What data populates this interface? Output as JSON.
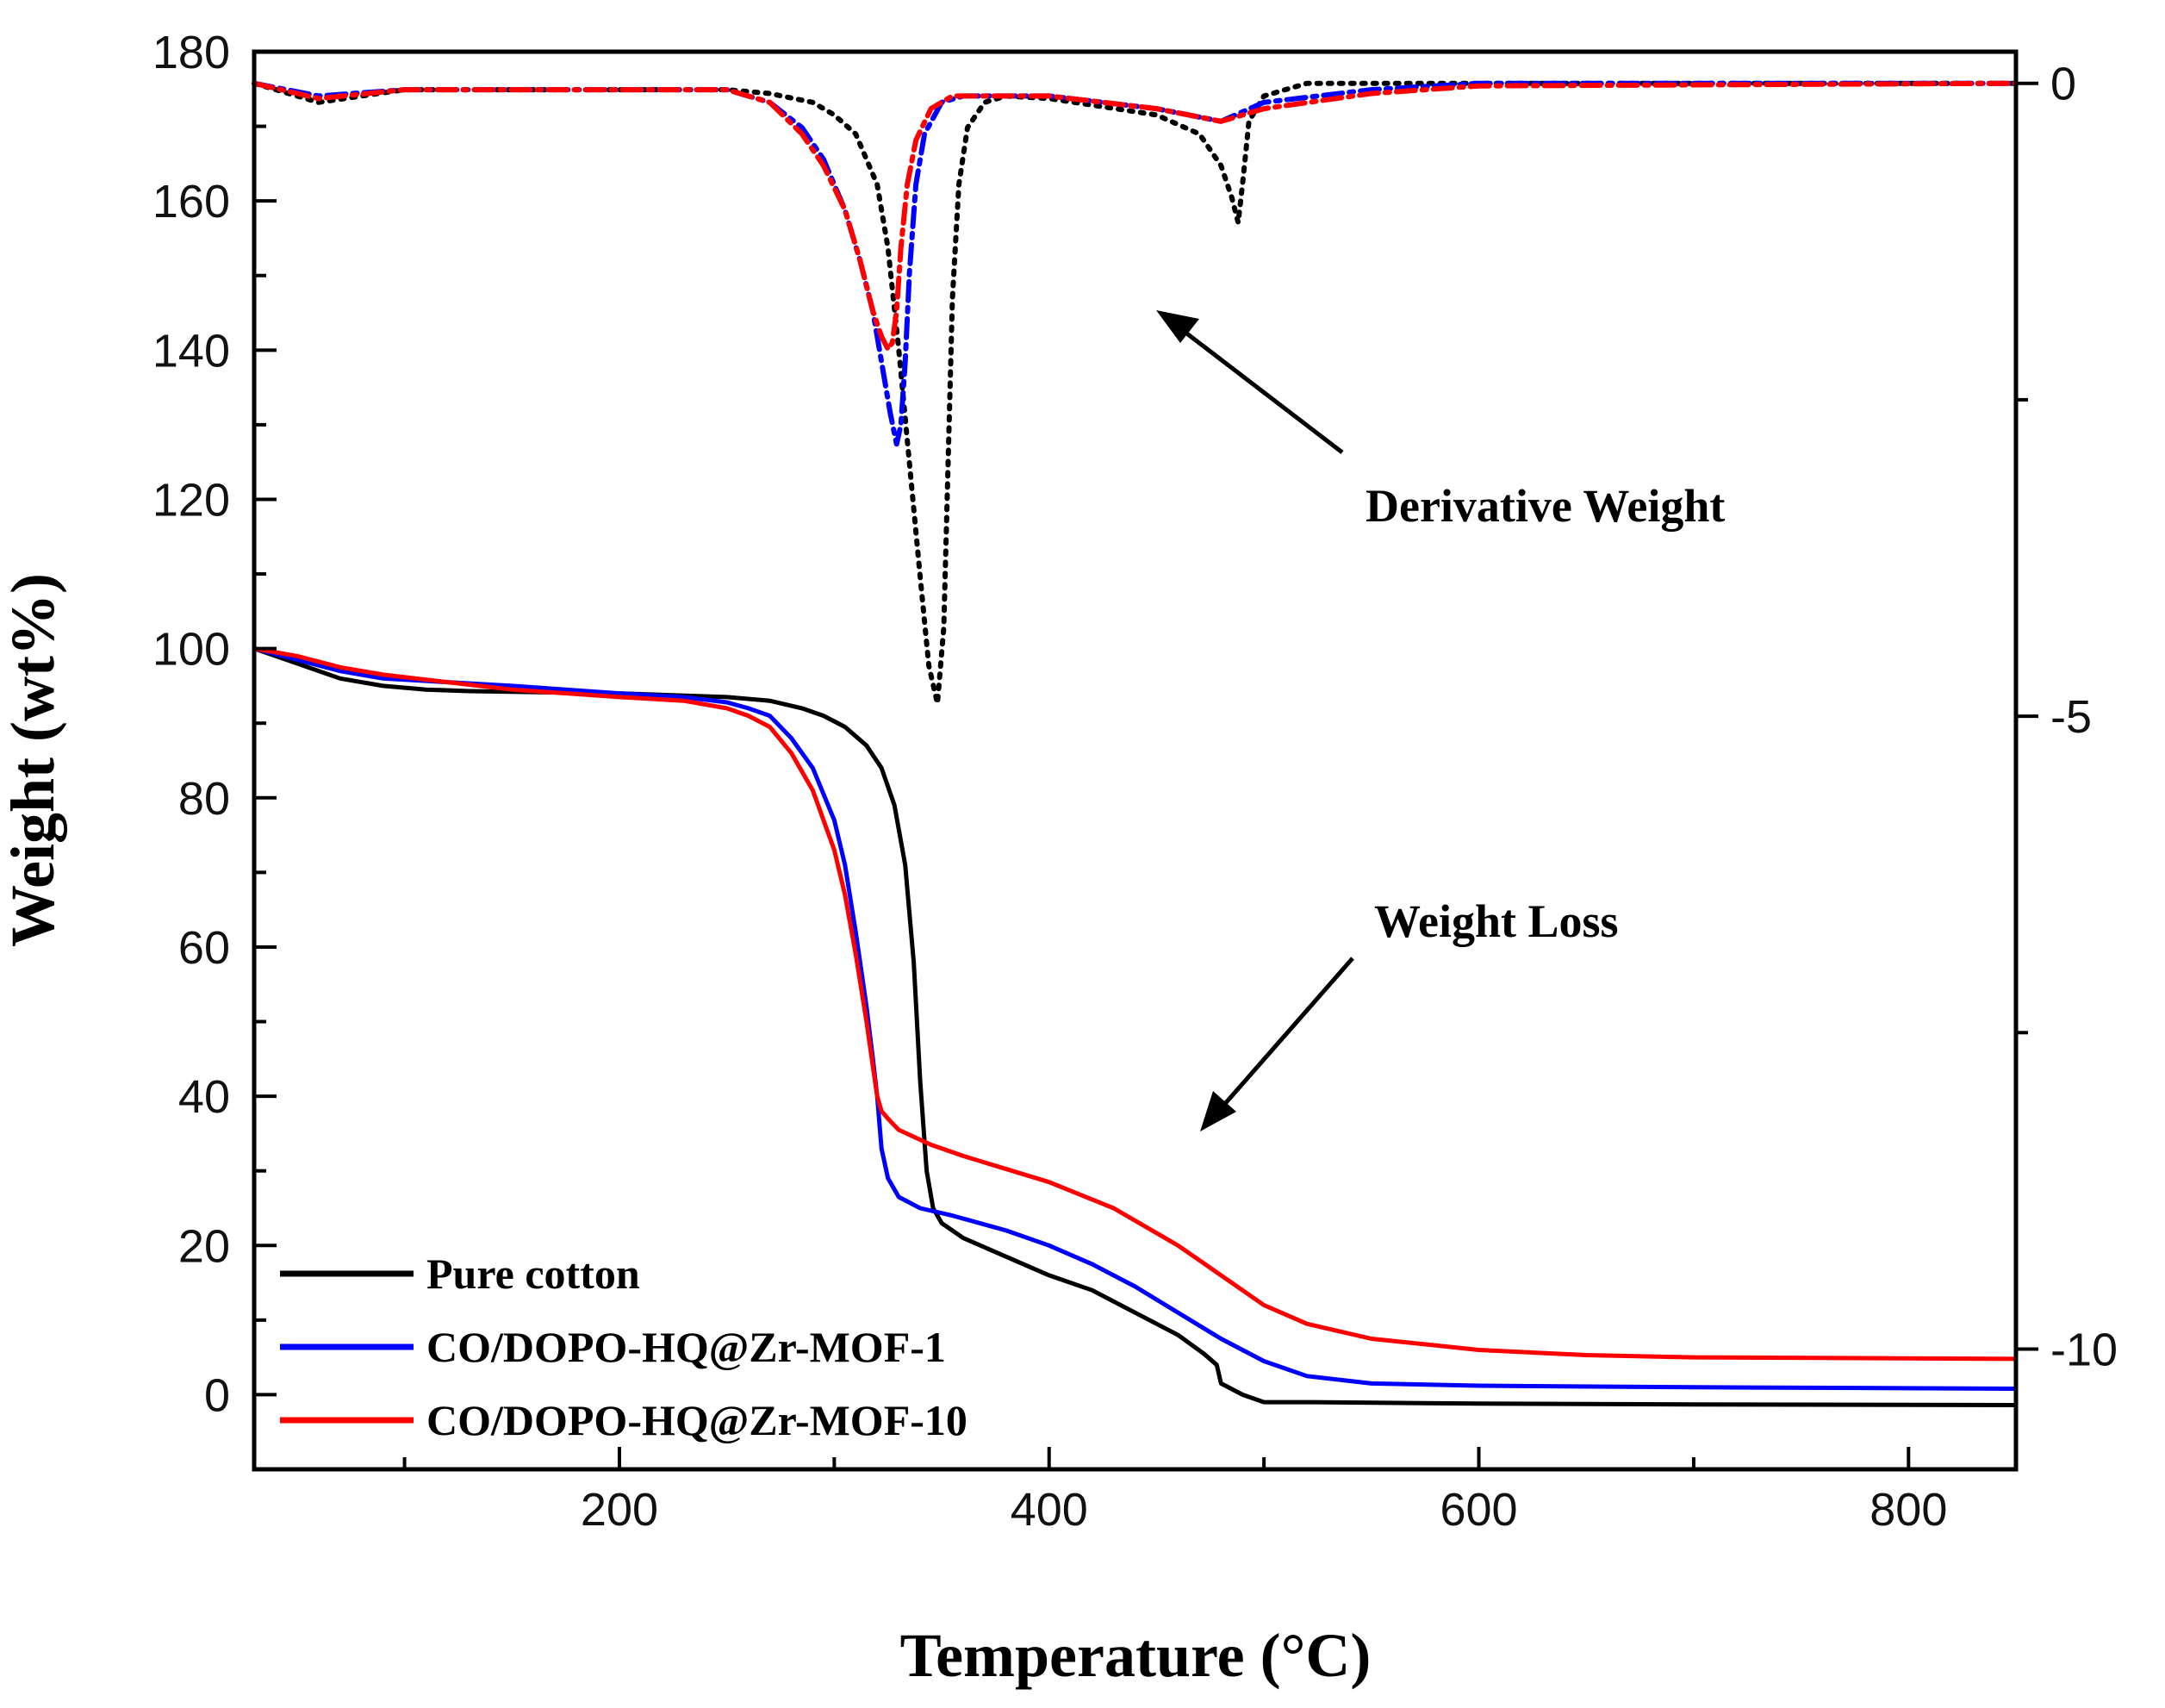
{
  "chart_data": {
    "type": "line",
    "title": "",
    "xlabel": "Temperature (°C)",
    "ylabel": "Weight (wt%)",
    "y2label": "",
    "xlim": [
      30,
      850
    ],
    "ylim": [
      -10,
      180
    ],
    "y2lim": [
      -10.95,
      0.25
    ],
    "x_ticks": [
      200,
      400,
      600,
      800
    ],
    "y_ticks": [
      0,
      20,
      40,
      60,
      80,
      100,
      120,
      140,
      160,
      180
    ],
    "y2_ticks": [
      0,
      -5,
      -10
    ],
    "legend_position": "bottom-left",
    "series": [
      {
        "name": "Pure cotton",
        "color": "#000000",
        "axis": "left",
        "style": "solid",
        "x": [
          30,
          50,
          70,
          90,
          110,
          130,
          150,
          200,
          250,
          270,
          285,
          295,
          305,
          315,
          322,
          328,
          333,
          337,
          340,
          343,
          346,
          350,
          355,
          360,
          380,
          400,
          420,
          440,
          460,
          472,
          478,
          480,
          490,
          500,
          520,
          600,
          700,
          850
        ],
        "values": [
          100,
          98,
          96,
          95,
          94.5,
          94.3,
          94.2,
          94,
          93.5,
          93,
          92,
          91,
          89.5,
          87,
          84,
          79,
          71,
          58,
          42,
          30,
          25,
          23,
          22,
          21,
          18.5,
          16,
          14,
          11,
          8,
          5.5,
          4,
          1.5,
          0,
          -1,
          -1,
          -1.2,
          -1.3,
          -1.4
        ]
      },
      {
        "name": "CO/DOPO-HQ@Zr-MOF-1",
        "color": "#0000ff",
        "axis": "left",
        "style": "solid",
        "x": [
          30,
          50,
          70,
          90,
          120,
          150,
          200,
          230,
          250,
          260,
          270,
          280,
          290,
          300,
          305,
          310,
          315,
          318,
          320,
          322,
          325,
          330,
          340,
          355,
          380,
          400,
          420,
          440,
          460,
          480,
          500,
          520,
          550,
          600,
          700,
          850
        ],
        "values": [
          100,
          98.5,
          97,
          96,
          95.5,
          95,
          94,
          93.5,
          92.8,
          92,
          91,
          88,
          84,
          77,
          71,
          62,
          52,
          45,
          40,
          33,
          29,
          26.5,
          25,
          24,
          22,
          20,
          17.5,
          14.5,
          11,
          7.5,
          4.5,
          2.5,
          1.5,
          1.2,
          1,
          0.8
        ]
      },
      {
        "name": "CO/DOPO-HQ@Zr-MOF-10",
        "color": "#ff0000",
        "axis": "left",
        "style": "solid",
        "x": [
          30,
          50,
          70,
          90,
          120,
          150,
          200,
          230,
          250,
          260,
          270,
          280,
          290,
          300,
          305,
          310,
          315,
          318,
          320,
          322,
          325,
          330,
          345,
          360,
          400,
          430,
          460,
          480,
          500,
          520,
          550,
          600,
          650,
          700,
          850
        ],
        "values": [
          100,
          99,
          97.5,
          96.5,
          95.5,
          94.5,
          93.5,
          93,
          92,
          91,
          89.5,
          86,
          81,
          73,
          67,
          59,
          50,
          44,
          40,
          38,
          37,
          35.5,
          33.5,
          32,
          28.5,
          25,
          20,
          16,
          12,
          9.5,
          7.5,
          6,
          5.3,
          5,
          4.8
        ]
      },
      {
        "name": "Pure cotton DTG",
        "color": "#000000",
        "axis": "right",
        "style": "dotted",
        "x": [
          30,
          50,
          60,
          80,
          100,
          150,
          200,
          250,
          270,
          290,
          300,
          310,
          320,
          325,
          330,
          335,
          340,
          344,
          348,
          351,
          353,
          355,
          358,
          362,
          370,
          380,
          400,
          450,
          470,
          480,
          485,
          488,
          490,
          493,
          500,
          520,
          600,
          850
        ],
        "values": [
          0,
          -0.1,
          -0.15,
          -0.1,
          -0.05,
          -0.05,
          -0.05,
          -0.05,
          -0.08,
          -0.15,
          -0.25,
          -0.4,
          -0.8,
          -1.3,
          -2.1,
          -3.0,
          -3.9,
          -4.6,
          -4.9,
          -4.3,
          -3.0,
          -1.7,
          -0.8,
          -0.35,
          -0.15,
          -0.1,
          -0.12,
          -0.25,
          -0.4,
          -0.65,
          -0.9,
          -1.1,
          -0.8,
          -0.3,
          -0.1,
          0,
          0,
          0
        ]
      },
      {
        "name": "CO/DOPO-HQ@Zr-MOF-1 DTG",
        "color": "#0000ff",
        "axis": "right",
        "style": "dashdot",
        "x": [
          30,
          60,
          100,
          200,
          250,
          270,
          285,
          295,
          305,
          312,
          318,
          322,
          326,
          329,
          331,
          333,
          335,
          338,
          342,
          350,
          360,
          400,
          450,
          480,
          500,
          550,
          600,
          850
        ],
        "values": [
          0,
          -0.1,
          -0.05,
          -0.05,
          -0.05,
          -0.15,
          -0.35,
          -0.6,
          -1.0,
          -1.4,
          -1.8,
          -2.2,
          -2.6,
          -2.85,
          -2.7,
          -2.2,
          -1.5,
          -0.8,
          -0.4,
          -0.15,
          -0.1,
          -0.1,
          -0.2,
          -0.3,
          -0.15,
          -0.05,
          0,
          0
        ]
      },
      {
        "name": "CO/DOPO-HQ@Zr-MOF-10 DTG",
        "color": "#ff0000",
        "axis": "right",
        "style": "dashdot",
        "x": [
          30,
          60,
          100,
          200,
          250,
          270,
          285,
          295,
          305,
          312,
          318,
          322,
          325,
          327,
          329,
          331,
          334,
          338,
          345,
          355,
          400,
          450,
          480,
          500,
          550,
          600,
          850
        ],
        "values": [
          0,
          -0.12,
          -0.05,
          -0.05,
          -0.05,
          -0.15,
          -0.4,
          -0.65,
          -1.0,
          -1.4,
          -1.8,
          -2.0,
          -2.1,
          -2.05,
          -1.8,
          -1.3,
          -0.8,
          -0.45,
          -0.2,
          -0.1,
          -0.1,
          -0.2,
          -0.3,
          -0.2,
          -0.08,
          -0.02,
          0
        ]
      }
    ],
    "annotations": [
      {
        "text": "Derivative Weight"
      },
      {
        "text": "Weight Loss"
      }
    ],
    "legend": [
      "Pure cotton",
      "CO/DOPO-HQ@Zr-MOF-1",
      "CO/DOPO-HQ@Zr-MOF-10"
    ]
  }
}
